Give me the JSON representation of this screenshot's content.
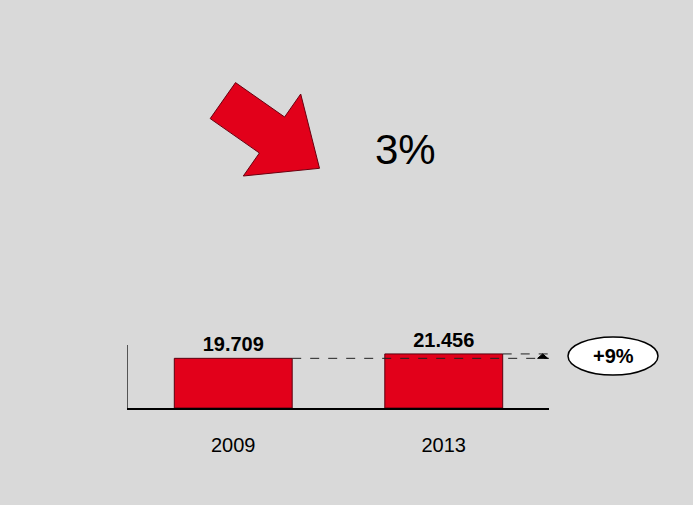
{
  "chart_data": {
    "type": "bar",
    "categories": [
      "2009",
      "2013"
    ],
    "values": [
      19709,
      21456
    ],
    "value_labels": [
      "19.709",
      "21.456"
    ],
    "color": "#e2001a",
    "data_labels": true,
    "ylim": [
      0,
      25000
    ],
    "tick_labels": "x",
    "annotations": [
      "+9%",
      "3%"
    ]
  }
}
